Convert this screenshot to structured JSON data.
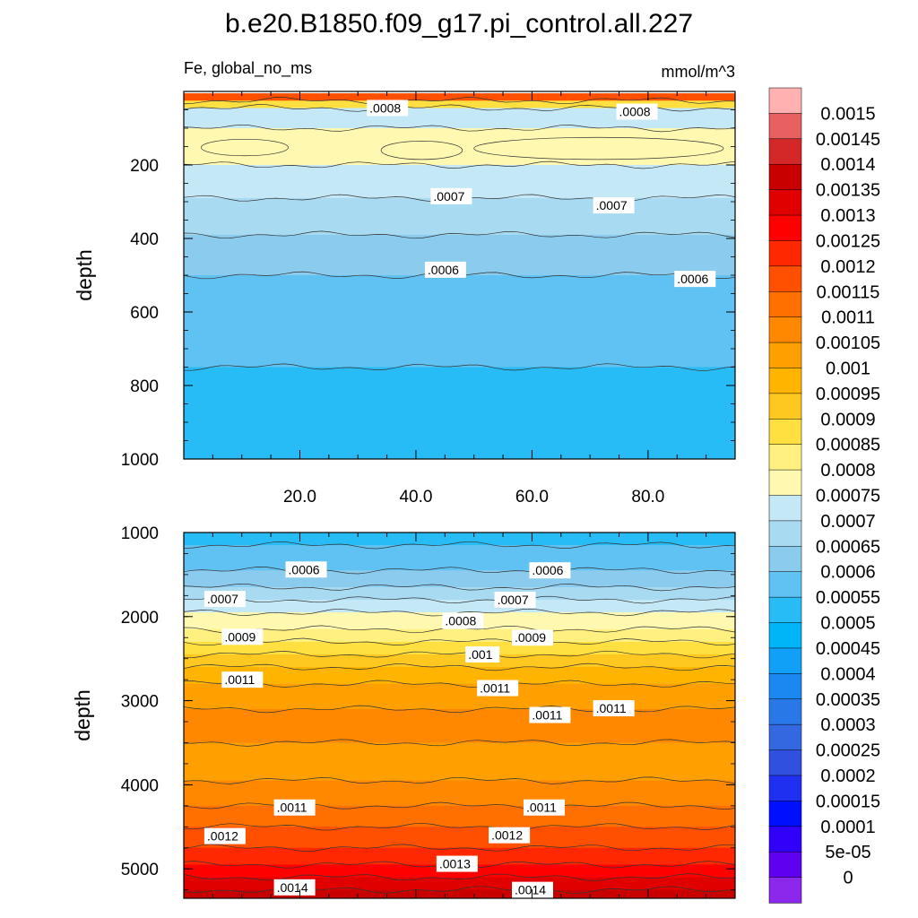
{
  "chart_data": [
    {
      "type": "heatmap",
      "panel": "top",
      "title": "b.e20.B1850.f09_g17.pi_control.all.227",
      "left_label": "Fe, global_no_ms",
      "right_label": "mmol/m^3",
      "xlabel": "",
      "ylabel": "depth",
      "xlim": [
        0,
        95
      ],
      "ylim": [
        1000,
        0
      ],
      "xticks": [
        20,
        40,
        60,
        80
      ],
      "xtick_labels": [
        "20.0",
        "40.0",
        "60.0",
        "80.0"
      ],
      "yticks": [
        200,
        400,
        600,
        800,
        1000
      ],
      "ytick_labels": [
        "200",
        "400",
        "600",
        "800",
        "1000"
      ],
      "bands": [
        {
          "depth": 5,
          "value": 0.00115
        },
        {
          "depth": 25,
          "value": 0.00085
        },
        {
          "depth": 45,
          "value": 0.0007
        },
        {
          "depth": 100,
          "value": 0.00075
        },
        {
          "depth": 200,
          "value": 0.0007
        },
        {
          "depth": 290,
          "value": 0.00065
        },
        {
          "depth": 390,
          "value": 0.0006
        },
        {
          "depth": 500,
          "value": 0.00055
        },
        {
          "depth": 750,
          "value": 0.0005
        },
        {
          "depth": 1000,
          "value": 0.0005
        }
      ],
      "contour_labels": [
        {
          "text": ".0008",
          "x": 32,
          "depth": 45
        },
        {
          "text": ".0008",
          "x": 75,
          "depth": 55
        },
        {
          "text": ".0007",
          "x": 43,
          "depth": 285
        },
        {
          "text": ".0007",
          "x": 71,
          "depth": 310
        },
        {
          "text": ".0006",
          "x": 42,
          "depth": 485
        },
        {
          "text": ".0006",
          "x": 85,
          "depth": 510
        }
      ]
    },
    {
      "type": "heatmap",
      "panel": "bottom",
      "xlabel": "",
      "ylabel": "depth",
      "xlim": [
        0,
        95
      ],
      "ylim": [
        5350,
        1000
      ],
      "yticks": [
        1000,
        2000,
        3000,
        4000,
        5000
      ],
      "ytick_labels": [
        "1000",
        "2000",
        "3000",
        "4000",
        "5000"
      ],
      "bands": [
        {
          "depth": 1000,
          "value": 0.0005
        },
        {
          "depth": 1150,
          "value": 0.00055
        },
        {
          "depth": 1450,
          "value": 0.0006
        },
        {
          "depth": 1650,
          "value": 0.00065
        },
        {
          "depth": 1800,
          "value": 0.0007
        },
        {
          "depth": 1950,
          "value": 0.00075
        },
        {
          "depth": 2150,
          "value": 0.0008
        },
        {
          "depth": 2300,
          "value": 0.00085
        },
        {
          "depth": 2450,
          "value": 0.0009
        },
        {
          "depth": 2600,
          "value": 0.00095
        },
        {
          "depth": 2800,
          "value": 0.001
        },
        {
          "depth": 3100,
          "value": 0.00105
        },
        {
          "depth": 3500,
          "value": 0.001
        },
        {
          "depth": 3950,
          "value": 0.00105
        },
        {
          "depth": 4250,
          "value": 0.0011
        },
        {
          "depth": 4500,
          "value": 0.00115
        },
        {
          "depth": 4750,
          "value": 0.0012
        },
        {
          "depth": 4950,
          "value": 0.00125
        },
        {
          "depth": 5100,
          "value": 0.0013
        },
        {
          "depth": 5250,
          "value": 0.00135
        },
        {
          "depth": 5350,
          "value": 0.0014
        }
      ],
      "contour_labels": [
        {
          "text": ".0006",
          "x": 18,
          "depth": 1440
        },
        {
          "text": ".0006",
          "x": 60,
          "depth": 1450
        },
        {
          "text": ".0007",
          "x": 4,
          "depth": 1790
        },
        {
          "text": ".0007",
          "x": 54,
          "depth": 1800
        },
        {
          "text": ".0008",
          "x": 45,
          "depth": 2050
        },
        {
          "text": ".0009",
          "x": 7,
          "depth": 2240
        },
        {
          "text": ".0009",
          "x": 57,
          "depth": 2250
        },
        {
          "text": ".001",
          "x": 49,
          "depth": 2450
        },
        {
          "text": ".0011",
          "x": 7,
          "depth": 2750
        },
        {
          "text": ".0011",
          "x": 51,
          "depth": 2850
        },
        {
          "text": ".0011",
          "x": 60,
          "depth": 3170
        },
        {
          "text": ".0011",
          "x": 71,
          "depth": 3090
        },
        {
          "text": ".0011",
          "x": 16,
          "depth": 4270
        },
        {
          "text": ".0011",
          "x": 59,
          "depth": 4270
        },
        {
          "text": ".0012",
          "x": 4,
          "depth": 4610
        },
        {
          "text": ".0012",
          "x": 53,
          "depth": 4600
        },
        {
          "text": ".0013",
          "x": 44,
          "depth": 4940
        },
        {
          "text": ".0014",
          "x": 16,
          "depth": 5220
        },
        {
          "text": ".0014",
          "x": 57,
          "depth": 5250
        }
      ]
    }
  ],
  "colorbar": {
    "labels": [
      "0.0015",
      "0.00145",
      "0.0014",
      "0.00135",
      "0.0013",
      "0.00125",
      "0.0012",
      "0.00115",
      "0.0011",
      "0.00105",
      "0.001",
      "0.00095",
      "0.0009",
      "0.00085",
      "0.0008",
      "0.00075",
      "0.0007",
      "0.00065",
      "0.0006",
      "0.00055",
      "0.0005",
      "0.00045",
      "0.0004",
      "0.00035",
      "0.0003",
      "0.00025",
      "0.0002",
      "0.00015",
      "0.0001",
      "5e-05",
      "0"
    ],
    "colors": [
      "#ffb0b0",
      "#e86060",
      "#d42828",
      "#c80000",
      "#e00000",
      "#ff0000",
      "#ff2800",
      "#ff5000",
      "#ff7000",
      "#ff8800",
      "#ffa000",
      "#ffb400",
      "#ffc820",
      "#ffe040",
      "#fff080",
      "#fff8b0",
      "#c4e8f6",
      "#a8daf2",
      "#8acbee",
      "#60c2f2",
      "#28bcf6",
      "#00b4f8",
      "#10a0f8",
      "#1a88f0",
      "#2878e8",
      "#3468e0",
      "#3050e0",
      "#2030f0",
      "#0010ff",
      "#3000f8",
      "#6000f0",
      "#8c28ec"
    ]
  }
}
